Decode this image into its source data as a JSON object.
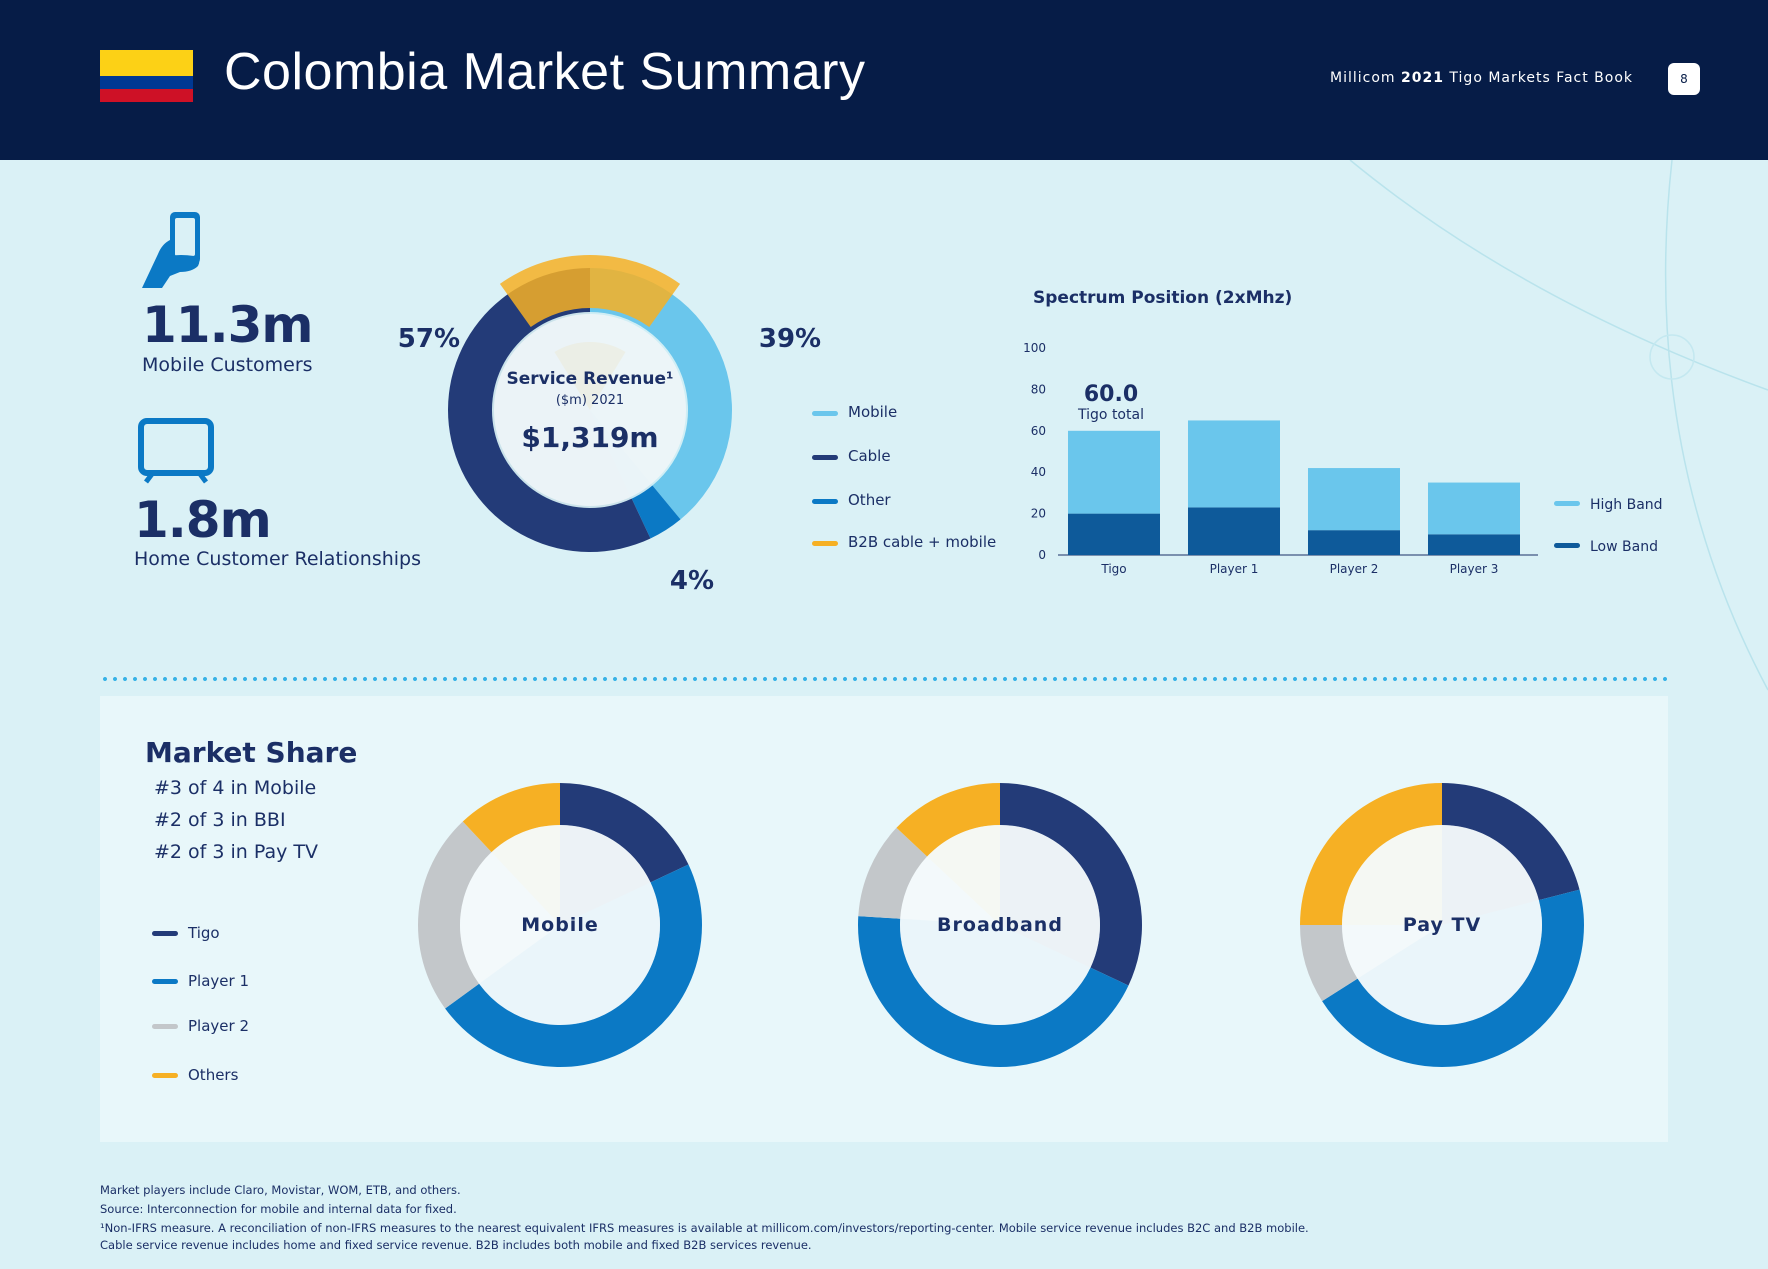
{
  "header": {
    "title": "Colombia Market Summary",
    "factbook_prefix": "Millicom ",
    "factbook_year": "2021",
    "factbook_suffix": " Tigo Markets Fact Book",
    "page_number": "8",
    "flag_colors": [
      "#fcd116",
      "#003893",
      "#ce1126"
    ]
  },
  "stats": {
    "mobile": {
      "icon": "phone-in-hand-icon",
      "value": "11.3m",
      "label": "Mobile Customers"
    },
    "home": {
      "icon": "tv-icon",
      "value": "1.8m",
      "label": "Home Customer Relationships"
    }
  },
  "colors": {
    "navy": "#233b78",
    "blue": "#0b79c5",
    "light_blue": "#6ac6ec",
    "gray": "#c3c7ca",
    "yellow": "#f6b024",
    "dark_bar": "#0e5a9a",
    "text": "#1b2f66"
  },
  "chart_data": [
    {
      "type": "pie",
      "id": "service-revenue",
      "title": "Service Revenue¹",
      "subtitle": "($m) 2021",
      "center_value": "$1,319m",
      "series": [
        {
          "name": "Mobile",
          "value": 39,
          "label": "39%",
          "color": "#6ac6ec"
        },
        {
          "name": "Other",
          "value": 4,
          "label": "4%",
          "color": "#0b79c5"
        },
        {
          "name": "Cable",
          "value": 57,
          "label": "57%",
          "color": "#233b78"
        }
      ],
      "overlay": {
        "name": "B2B cable + mobile",
        "color": "#f6b024"
      },
      "legend": [
        {
          "name": "Mobile",
          "color": "#6ac6ec"
        },
        {
          "name": "Cable",
          "color": "#233b78"
        },
        {
          "name": "Other",
          "color": "#0b79c5"
        },
        {
          "name": "B2B cable + mobile",
          "color": "#f6b024"
        }
      ]
    },
    {
      "type": "bar",
      "id": "spectrum",
      "title": "Spectrum Position (2xMhz)",
      "categories": [
        "Tigo",
        "Player 1",
        "Player 2",
        "Player 3"
      ],
      "series": [
        {
          "name": "Low Band",
          "values": [
            20,
            23,
            12,
            10
          ],
          "color": "#0e5a9a"
        },
        {
          "name": "High Band",
          "values": [
            40,
            42,
            30,
            25
          ],
          "color": "#6ac6ec"
        }
      ],
      "ylim": [
        0,
        100
      ],
      "yticks": [
        "0",
        "20",
        "40",
        "60",
        "80",
        "100"
      ],
      "annotation": {
        "value": "60.0",
        "text": "Tigo total"
      },
      "legend": [
        {
          "name": "High Band",
          "color": "#6ac6ec"
        },
        {
          "name": "Low Band",
          "color": "#0e5a9a"
        }
      ]
    },
    {
      "type": "pie",
      "id": "ms-mobile",
      "title": "Mobile",
      "series": [
        {
          "name": "Tigo",
          "value": 18
        },
        {
          "name": "Player 1",
          "value": 47
        },
        {
          "name": "Player 2",
          "value": 23
        },
        {
          "name": "Others",
          "value": 12
        }
      ]
    },
    {
      "type": "pie",
      "id": "ms-broadband",
      "title": "Broadband",
      "series": [
        {
          "name": "Tigo",
          "value": 32
        },
        {
          "name": "Player 1",
          "value": 44
        },
        {
          "name": "Player 2",
          "value": 11
        },
        {
          "name": "Others",
          "value": 13
        }
      ]
    },
    {
      "type": "pie",
      "id": "ms-paytv",
      "title": "Pay TV",
      "series": [
        {
          "name": "Tigo",
          "value": 21
        },
        {
          "name": "Player 1",
          "value": 45
        },
        {
          "name": "Player 2",
          "value": 9
        },
        {
          "name": "Others",
          "value": 25
        }
      ]
    }
  ],
  "market_share": {
    "title": "Market Share",
    "ranks": [
      "#3 of 4 in Mobile",
      "#2 of 3 in BBI",
      "#2 of 3 in Pay TV"
    ],
    "legend": [
      {
        "name": "Tigo",
        "color": "#233b78"
      },
      {
        "name": "Player 1",
        "color": "#0b79c5"
      },
      {
        "name": "Player 2",
        "color": "#c3c7ca"
      },
      {
        "name": "Others",
        "color": "#f6b024"
      }
    ]
  },
  "footnotes": [
    "Market players include Claro, Movistar, WOM, ETB, and others.",
    "Source: Interconnection for mobile and internal data for fixed.",
    "¹Non-IFRS measure. A reconciliation of non-IFRS measures to the nearest equivalent IFRS measures is available at millicom.com/investors/reporting-center. Mobile service revenue includes B2C and B2B mobile.",
    " Cable service revenue includes home and fixed service revenue. B2B includes both mobile and fixed B2B services revenue."
  ]
}
